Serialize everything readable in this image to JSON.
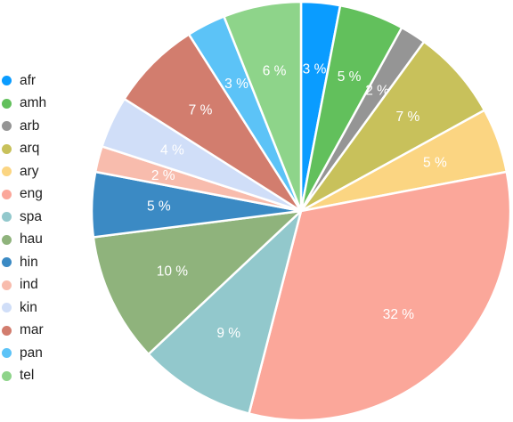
{
  "chart_data": {
    "type": "pie",
    "start": "top",
    "direction": "clockwise",
    "legend_position": "left",
    "slices": [
      {
        "label": "afr",
        "value": 3,
        "text": "3 %",
        "color": "#0a9cff"
      },
      {
        "label": "amh",
        "value": 5,
        "text": "5 %",
        "color": "#62c05c"
      },
      {
        "label": "arb",
        "value": 2,
        "text": "2 %",
        "color": "#959595"
      },
      {
        "label": "arq",
        "value": 7,
        "text": "7 %",
        "color": "#c8c15b"
      },
      {
        "label": "ary",
        "value": 5,
        "text": "5 %",
        "color": "#fbd582"
      },
      {
        "label": "eng",
        "value": 32,
        "text": "32 %",
        "color": "#fba79a"
      },
      {
        "label": "spa",
        "value": 9,
        "text": "9 %",
        "color": "#92c8cc"
      },
      {
        "label": "hau",
        "value": 10,
        "text": "10 %",
        "color": "#8fb37c"
      },
      {
        "label": "hin",
        "value": 5,
        "text": "5 %",
        "color": "#3b8ac4"
      },
      {
        "label": "ind",
        "value": 2,
        "text": "2 %",
        "color": "#f8bcad"
      },
      {
        "label": "kin",
        "value": 4,
        "text": "4 %",
        "color": "#d0def8"
      },
      {
        "label": "mar",
        "value": 7,
        "text": "7 %",
        "color": "#d27d6e"
      },
      {
        "label": "pan",
        "value": 3,
        "text": "3 %",
        "color": "#5cc3f7"
      },
      {
        "label": "tel",
        "value": 6,
        "text": "6 %",
        "color": "#8ed48a"
      }
    ]
  }
}
